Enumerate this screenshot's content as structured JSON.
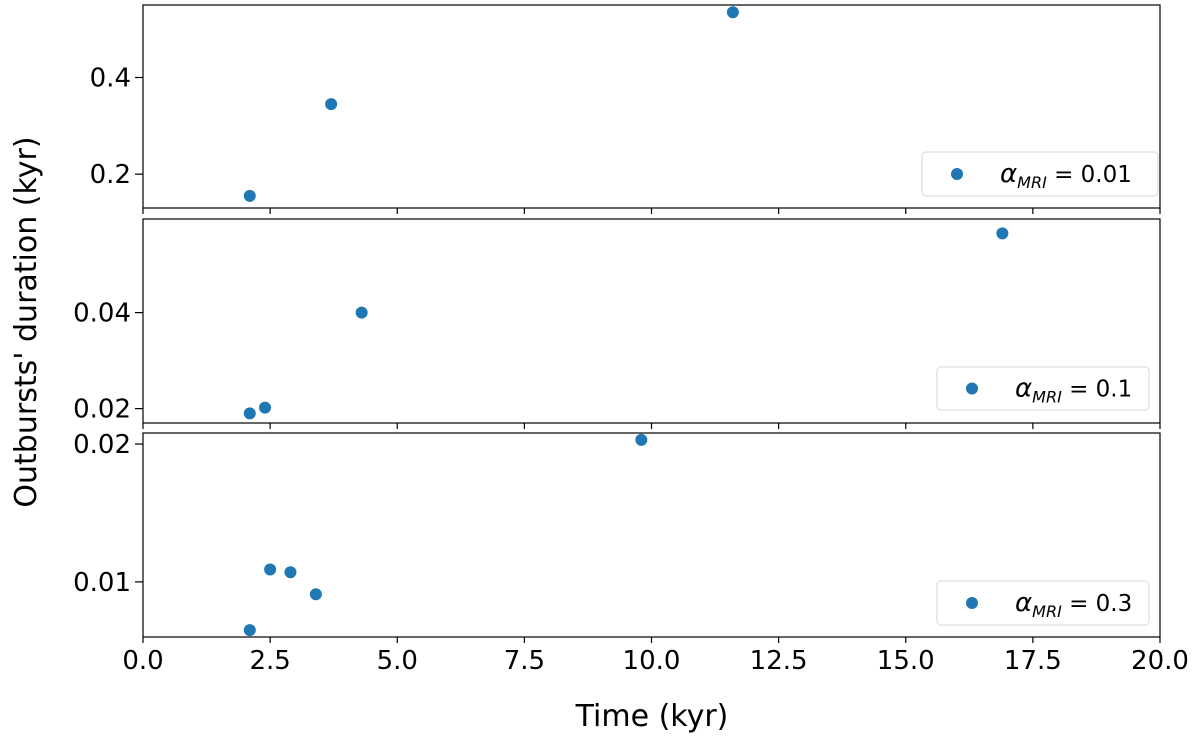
{
  "figure": {
    "xlabel": "Time (kyr)",
    "ylabel": "Outbursts' duration (kyr)"
  },
  "chart_data": [
    {
      "type": "scatter",
      "color": "#1f77b4",
      "xlim": [
        0,
        20
      ],
      "xticks": [
        "0.0",
        "2.5",
        "5.0",
        "7.5",
        "10.0",
        "12.5",
        "15.0",
        "17.5",
        "20.0"
      ],
      "ylim": [
        0.13,
        0.55
      ],
      "yticks": [
        0.2,
        0.4
      ],
      "ytick_labels": [
        "0.2",
        "0.4"
      ],
      "legend_position": "lower-right",
      "legend": {
        "alpha": "α",
        "sub": "MRI",
        "value": " = 0.01"
      },
      "points": [
        {
          "x": 2.1,
          "y": 0.155
        },
        {
          "x": 3.7,
          "y": 0.345
        },
        {
          "x": 11.6,
          "y": 0.535
        }
      ]
    },
    {
      "type": "scatter",
      "color": "#1f77b4",
      "xlim": [
        0,
        20
      ],
      "xticks": [
        "0.0",
        "2.5",
        "5.0",
        "7.5",
        "10.0",
        "12.5",
        "15.0",
        "17.5",
        "20.0"
      ],
      "ylim": [
        0.017,
        0.0595
      ],
      "yticks": [
        0.02,
        0.04
      ],
      "ytick_labels": [
        "0.02",
        "0.04"
      ],
      "legend_position": "lower-right",
      "legend": {
        "alpha": "α",
        "sub": "MRI",
        "value": " = 0.1"
      },
      "points": [
        {
          "x": 2.1,
          "y": 0.019
        },
        {
          "x": 2.4,
          "y": 0.0202
        },
        {
          "x": 4.3,
          "y": 0.04
        },
        {
          "x": 16.9,
          "y": 0.0565
        }
      ]
    },
    {
      "type": "scatter",
      "color": "#1f77b4",
      "xlim": [
        0,
        20
      ],
      "xticks": [
        "0.0",
        "2.5",
        "5.0",
        "7.5",
        "10.0",
        "12.5",
        "15.0",
        "17.5",
        "20.0"
      ],
      "ylim": [
        0.006,
        0.0208
      ],
      "yticks": [
        0.01,
        0.02
      ],
      "ytick_labels": [
        "0.01",
        "0.02"
      ],
      "legend_position": "lower-right",
      "legend": {
        "alpha": "α",
        "sub": "MRI",
        "value": " = 0.3"
      },
      "points": [
        {
          "x": 2.1,
          "y": 0.0065
        },
        {
          "x": 2.5,
          "y": 0.0109
        },
        {
          "x": 2.9,
          "y": 0.0107
        },
        {
          "x": 3.4,
          "y": 0.0091
        },
        {
          "x": 9.8,
          "y": 0.0203
        }
      ]
    }
  ]
}
